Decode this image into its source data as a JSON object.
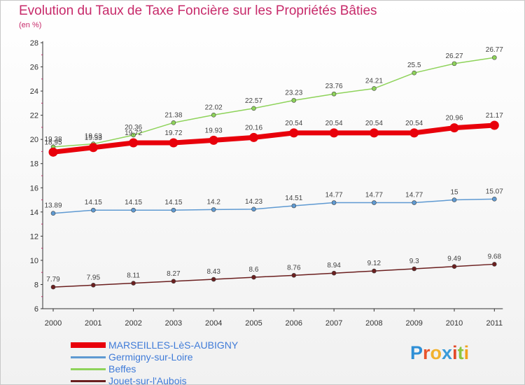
{
  "chart_data": {
    "type": "line",
    "title": "Evolution du Taux de Taxe Foncière sur les Propriétés Bâties",
    "ylabel": "(en %)",
    "xlabel": "",
    "categories": [
      "2000",
      "2001",
      "2002",
      "2003",
      "2004",
      "2005",
      "2006",
      "2007",
      "2008",
      "2009",
      "2010",
      "2011"
    ],
    "ylim": [
      6,
      28
    ],
    "yticks": [
      "6",
      "8",
      "10",
      "12",
      "14",
      "16",
      "18",
      "20",
      "22",
      "24",
      "26",
      "28"
    ],
    "grid": false,
    "legend_position": "bottom-left",
    "series": [
      {
        "name": "Beffes",
        "color": "#8ed35a",
        "style": "thin",
        "values": [
          19.38,
          19.63,
          20.36,
          21.38,
          22.02,
          22.57,
          23.23,
          23.76,
          24.21,
          25.5,
          26.27,
          26.77
        ],
        "labels": [
          "19.38",
          "19.63",
          "20.36",
          "21.38",
          "22.02",
          "22.57",
          "23.23",
          "23.76",
          "24.21",
          "25.5",
          "26.27",
          "26.77"
        ]
      },
      {
        "name": "MARSEILLES-LèS-AUBIGNY",
        "color": "#e8000b",
        "style": "thick",
        "values": [
          18.95,
          19.33,
          19.72,
          19.72,
          19.93,
          20.16,
          20.54,
          20.54,
          20.54,
          20.54,
          20.96,
          21.17
        ],
        "labels": [
          "18.95",
          "19.33",
          "19.72",
          "19.72",
          "19.93",
          "20.16",
          "20.54",
          "20.54",
          "20.54",
          "20.54",
          "20.96",
          "21.17"
        ]
      },
      {
        "name": "Germigny-sur-Loire",
        "color": "#5f9ad2",
        "style": "thin",
        "values": [
          13.89,
          14.15,
          14.15,
          14.15,
          14.2,
          14.23,
          14.51,
          14.77,
          14.77,
          14.77,
          15,
          15.07
        ],
        "labels": [
          "13.89",
          "14.15",
          "14.15",
          "14.15",
          "14.2",
          "14.23",
          "14.51",
          "14.77",
          "14.77",
          "14.77",
          "15",
          "15.07"
        ]
      },
      {
        "name": "Jouet-sur-l'Aubois",
        "color": "#6b1f1f",
        "style": "thin",
        "values": [
          7.79,
          7.95,
          8.11,
          8.27,
          8.43,
          8.6,
          8.76,
          8.94,
          9.12,
          9.3,
          9.49,
          9.68
        ],
        "labels": [
          "7.79",
          "7.95",
          "8.11",
          "8.27",
          "8.43",
          "8.6",
          "8.76",
          "8.94",
          "9.12",
          "9.3",
          "9.49",
          "9.68"
        ]
      }
    ]
  },
  "legend": [
    {
      "name": "MARSEILLES-LèS-AUBIGNY",
      "color": "#e8000b"
    },
    {
      "name": "Germigny-sur-Loire",
      "color": "#5f9ad2"
    },
    {
      "name": "Beffes",
      "color": "#8ed35a"
    },
    {
      "name": "Jouet-sur-l'Aubois",
      "color": "#6b1f1f"
    }
  ],
  "logo": {
    "text": "Proxiti",
    "letters": [
      {
        "ch": "P",
        "color": "#2f8fd6"
      },
      {
        "ch": "r",
        "color": "#e8542c"
      },
      {
        "ch": "o",
        "color": "#f2b22e"
      },
      {
        "ch": "x",
        "color": "#3a9bd9"
      },
      {
        "ch": "i",
        "color": "#e24a2a"
      },
      {
        "ch": "t",
        "color": "#8cc63f"
      },
      {
        "ch": "i",
        "color": "#f0a21c"
      }
    ]
  }
}
